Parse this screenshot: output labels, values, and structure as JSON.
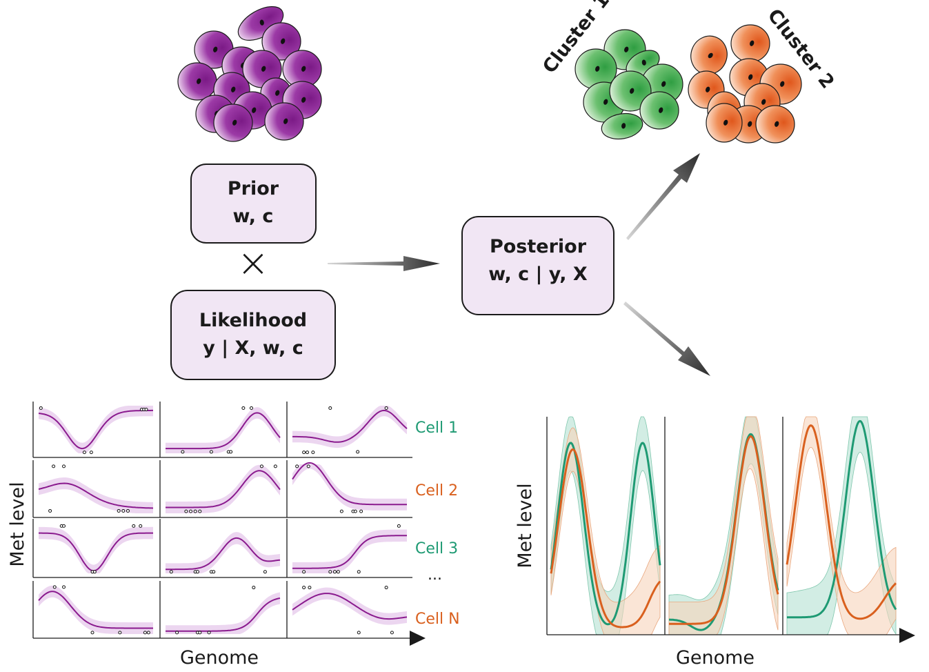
{
  "colors": {
    "purple": "#8a1a8e",
    "purple_band": "#ead3ef",
    "green": "#1e9a73",
    "green_band": "#bfe6d8",
    "orange": "#d9601e",
    "orange_band": "#f7d8c2",
    "box_fill": "#f1e6f4"
  },
  "prior": {
    "title": "Prior",
    "params": "w, c"
  },
  "times_symbol": "×",
  "likelihood": {
    "title": "Likelihood",
    "params": "y | X, w, c"
  },
  "posterior": {
    "title": "Posterior",
    "params": "w, c | y, X"
  },
  "clusters": [
    {
      "label": "Cluster 1",
      "color": "#2fa34a"
    },
    {
      "label": "Cluster 2",
      "color": "#e8632b"
    }
  ],
  "cell_labels": [
    {
      "text": "Cell 1",
      "color": "#1e9a73"
    },
    {
      "text": "Cell 2",
      "color": "#d9601e"
    },
    {
      "text": "Cell 3",
      "color": "#1e9a73"
    },
    {
      "text": "...",
      "color": "#1a1a1a"
    },
    {
      "text": "Cell N",
      "color": "#d9601e"
    }
  ],
  "left_axes": {
    "ylabel": "Met level",
    "xlabel": "Genome"
  },
  "right_axes": {
    "ylabel": "Met level",
    "xlabel": "Genome"
  }
}
